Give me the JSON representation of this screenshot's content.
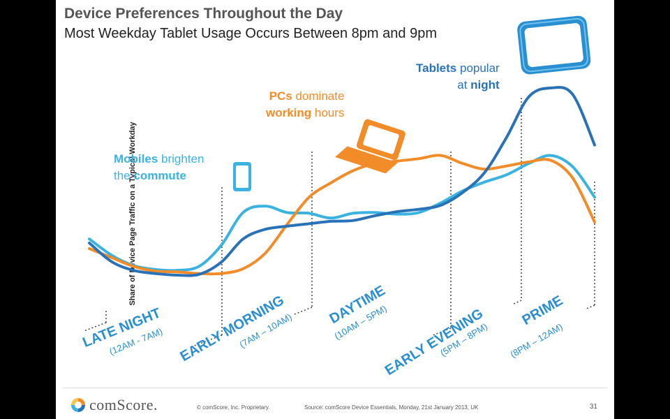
{
  "title": "Device Preferences Throughout the Day",
  "subtitle": "Most Weekday Tablet Usage Occurs Between 8pm and 9pm",
  "footer": {
    "brand": "comScore.",
    "copyright": "© comScore, Inc.   Proprietary.",
    "source": "Source: comScore Device Essentials, Monday, 21st January 2013, UK",
    "page": "31"
  },
  "colors": {
    "mobile": "#3bb3e0",
    "pc": "#f28c28",
    "tablet": "#2a72b8",
    "segment_text": "#2a8fd0",
    "annot_mobile": "#3bb3e0",
    "annot_pc": "#f28c28",
    "annot_tablet": "#2a72b8"
  },
  "annotations": {
    "mobile": {
      "strong1": "Mobiles",
      "rest1": " brighten",
      "rest2": "the ",
      "strong2": "commute"
    },
    "pc": {
      "strong1": "PCs",
      "rest1": " dominate",
      "strong2": "working",
      "rest2": " hours"
    },
    "tablet": {
      "strong1": "Tablets",
      "rest1": " popular",
      "rest2": "at ",
      "strong2": "night"
    }
  },
  "segments": [
    {
      "name": "LATE NIGHT",
      "time": "(12AM - 7AM)"
    },
    {
      "name": "EARLY MORNING",
      "time": "(7AM – 10AM)"
    },
    {
      "name": "DAYTIME",
      "time": "(10AM – 5PM)"
    },
    {
      "name": "EARLY EVENING",
      "time": "(5PM – 8PM)"
    },
    {
      "name": "PRIME",
      "time": "(8PM – 12AM)"
    }
  ],
  "chart_data": {
    "type": "line",
    "ylabel": "Share of Device Page Traffic on a Typical Workday",
    "x": [
      0,
      1,
      2,
      3,
      4,
      5,
      6,
      7,
      8,
      9,
      10,
      11,
      12,
      13,
      14,
      15,
      16,
      17,
      18,
      19,
      20,
      21,
      22,
      23
    ],
    "series": [
      {
        "name": "Mobiles",
        "color": "#3bb3e0",
        "values": [
          4.6,
          2.6,
          1.3,
          0.8,
          0.7,
          1.2,
          3.8,
          7.9,
          8.7,
          7.9,
          7.8,
          7.2,
          7.8,
          7.9,
          7.7,
          7.9,
          9.1,
          10.6,
          11.7,
          12.6,
          14.0,
          15.0,
          13.6,
          9.8
        ]
      },
      {
        "name": "PCs",
        "color": "#f28c28",
        "values": [
          3.4,
          2.3,
          1.2,
          0.6,
          0.5,
          0.3,
          0.3,
          0.9,
          2.8,
          6.4,
          9.8,
          11.6,
          13.1,
          14.0,
          14.3,
          14.6,
          15.0,
          14.0,
          13.3,
          13.7,
          14.2,
          14.4,
          12.2,
          6.7
        ]
      },
      {
        "name": "Tablets",
        "color": "#2a72b8",
        "values": [
          4.1,
          1.8,
          0.7,
          0.3,
          0.1,
          0.2,
          1.7,
          4.6,
          5.8,
          6.2,
          6.5,
          6.8,
          6.9,
          7.5,
          8.0,
          8.3,
          8.8,
          10.4,
          12.9,
          17.3,
          22.3,
          23.4,
          22.6,
          16.3
        ]
      }
    ]
  }
}
